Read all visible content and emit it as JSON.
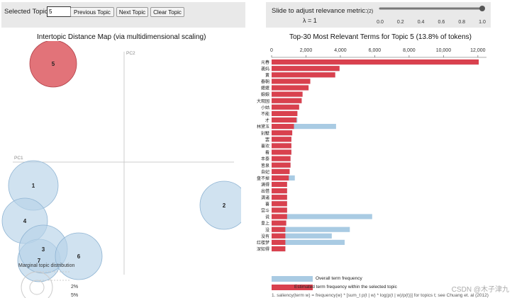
{
  "topic_controls": {
    "selected_label": "Selected Topic:",
    "selected_value": "5",
    "prev_button": "Previous Topic",
    "next_button": "Next Topic",
    "clear_button": "Clear Topic"
  },
  "lambda_controls": {
    "slider_label": "Slide to adjust relevance metric:",
    "footnote_marker": "(2)",
    "lambda_text": "λ = 1",
    "lambda_value": 1.0,
    "ticks": [
      "0.0",
      "0.2",
      "0.4",
      "0.6",
      "0.8",
      "1.0"
    ]
  },
  "left_panel": {
    "title": "Intertopic Distance Map (via multidimensional scaling)",
    "pc1_label": "PC1",
    "pc2_label": "PC2",
    "marginal_label": "Marginal topic distribution",
    "marginal_pct": "2%",
    "marginal_pct2": "5%",
    "selected_color": "#e06c72",
    "default_color": "#b7d2e8",
    "topics": [
      {
        "id": "1",
        "label": "1",
        "selected": false
      },
      {
        "id": "2",
        "label": "2",
        "selected": false
      },
      {
        "id": "3",
        "label": "3",
        "selected": false
      },
      {
        "id": "4",
        "label": "4",
        "selected": false
      },
      {
        "id": "5",
        "label": "5",
        "selected": true
      },
      {
        "id": "6",
        "label": "6",
        "selected": false
      },
      {
        "id": "7",
        "label": "7",
        "selected": false
      }
    ]
  },
  "chart_data": {
    "type": "bar",
    "title": "Top-30 Most Relevant Terms for Topic 5 (13.8% of tokens)",
    "xlim": [
      0,
      12500
    ],
    "xticks": [
      "0",
      "2,000",
      "4,000",
      "6,000",
      "8,000",
      "10,000",
      "12,000"
    ],
    "xtick_values": [
      0,
      2000,
      4000,
      6000,
      8000,
      10000,
      12000
    ],
    "categories": [
      "元春",
      "袭妈",
      "黄",
      "春朝",
      "嬷嬷",
      "娘娘",
      "大观园",
      "小姑",
      "不能",
      "才",
      "林黛玉",
      "别墅",
      "罢",
      "喜欢",
      "看",
      "丰泰",
      "皆泉",
      "自妃",
      "盘不掉",
      "满得",
      "出借",
      "满诸",
      "喜",
      "宫斗",
      "说",
      "皇上",
      "没",
      "没有",
      "红楼梦",
      "深知得"
    ],
    "series": [
      {
        "name": "Overall term frequency",
        "color": "#a9cbe3",
        "values": [
          12050,
          3950,
          3700,
          2250,
          2150,
          1800,
          1750,
          1600,
          1500,
          1500,
          3750,
          1200,
          1150,
          1150,
          1150,
          1100,
          1100,
          1050,
          1350,
          900,
          900,
          900,
          900,
          900,
          5850,
          850,
          4550,
          3500,
          4250,
          800
        ]
      },
      {
        "name": "Estimated term frequency within the selected topic",
        "color": "#d9414e",
        "values": [
          12050,
          3950,
          3700,
          2250,
          2150,
          1800,
          1750,
          1600,
          1500,
          1450,
          1300,
          1200,
          1150,
          1150,
          1150,
          1100,
          1100,
          1050,
          1000,
          900,
          900,
          900,
          900,
          900,
          900,
          850,
          800,
          800,
          800,
          800
        ]
      }
    ],
    "legend": [
      "Overall term frequency",
      "Estimated term frequency within the selected topic"
    ],
    "footnote": "1. saliency(term w) = frequency(w) * [sum_t p(t | w) * log(p(t | w)/p(t))] for topics t; see Chuang et. al (2012)"
  },
  "watermark": "CSDN @木子津九"
}
